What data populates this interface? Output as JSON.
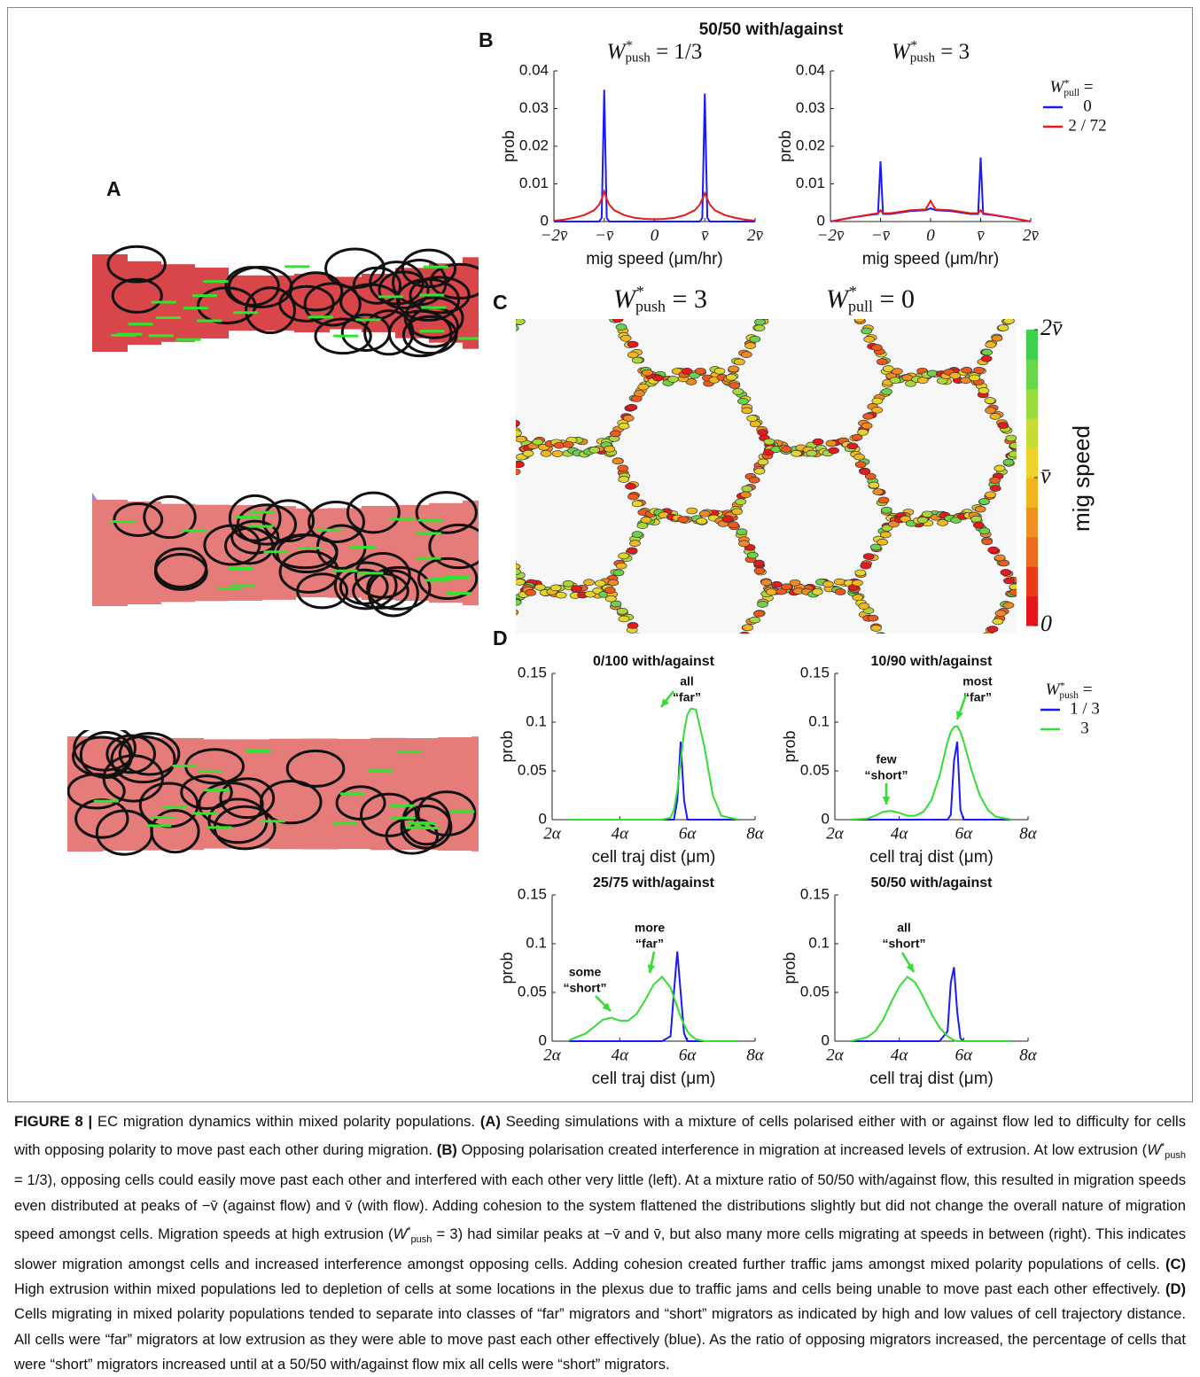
{
  "panel_labels": [
    "A",
    "B",
    "C",
    "D"
  ],
  "panel_b_title": "50/50 with/against",
  "panel_c": {
    "headers": [
      {
        "symbol": "W",
        "sup": "*",
        "sub": "push",
        "text": "= 3"
      },
      {
        "symbol": "W",
        "sup": "*",
        "sub": "pull",
        "text": "= 0"
      }
    ],
    "colorbar": {
      "lim": [
        0,
        2
      ],
      "ticks": [
        {
          "value": 2,
          "label": "2v̄"
        },
        {
          "value": 1,
          "label": "v̄"
        },
        0
      ],
      "label": "mig speed"
    }
  },
  "chart_data": [
    {
      "type": "line",
      "subtitle": {
        "symbol": "W",
        "sup": "*",
        "sub": "push",
        "text": "= 1/3"
      },
      "x": [
        -2,
        -1.8,
        -1.6,
        -1.4,
        -1.2,
        -1.1,
        -1.05,
        -1,
        -0.95,
        -0.9,
        -0.8,
        -0.6,
        -0.4,
        -0.2,
        0,
        0.2,
        0.4,
        0.6,
        0.8,
        0.9,
        0.95,
        1,
        1.05,
        1.1,
        1.2,
        1.4,
        1.6,
        1.8,
        2
      ],
      "series": [
        {
          "color": "#1a1aff",
          "values": [
            0,
            0,
            0,
            0,
            0,
            0,
            0.001,
            0.035,
            0.001,
            0,
            0,
            0,
            0,
            0,
            0,
            0,
            0,
            0,
            0,
            0,
            0.001,
            0.034,
            0.001,
            0,
            0,
            0,
            0,
            0,
            0
          ]
        },
        {
          "color": "#e8191c",
          "values": [
            0.0002,
            0.0005,
            0.001,
            0.0017,
            0.003,
            0.0045,
            0.006,
            0.008,
            0.006,
            0.0045,
            0.003,
            0.0017,
            0.001,
            0.0007,
            0.0006,
            0.0007,
            0.001,
            0.0017,
            0.003,
            0.0045,
            0.006,
            0.0075,
            0.006,
            0.0045,
            0.003,
            0.0017,
            0.001,
            0.0005,
            0.0002
          ]
        }
      ],
      "xlim": [
        -2,
        2
      ],
      "ylim": [
        0,
        0.04
      ],
      "xticks": [
        {
          "value": -2,
          "label": "−2v̄"
        },
        {
          "value": -1,
          "label": "−v̄"
        },
        0,
        {
          "value": 1,
          "label": "v̄"
        },
        {
          "value": 2,
          "label": "2v̄"
        }
      ],
      "yticks": [
        0,
        0.01,
        0.02,
        0.03,
        0.04
      ],
      "xlabel": "mig speed (μm/hr)",
      "ylabel": "prob"
    },
    {
      "type": "line",
      "subtitle": {
        "symbol": "W",
        "sup": "*",
        "sub": "push",
        "text": "= 3"
      },
      "legend_title": {
        "symbol": "W",
        "sup": "*",
        "sub": "pull",
        "text": "="
      },
      "x": [
        -2,
        -1.6,
        -1.2,
        -1.05,
        -1,
        -0.95,
        -0.8,
        -0.4,
        -0.1,
        0,
        0.1,
        0.4,
        0.8,
        0.95,
        1,
        1.05,
        1.2,
        1.6,
        2
      ],
      "series": [
        {
          "name": "0",
          "color": "#1a1aff",
          "values": [
            0,
            0.001,
            0.0018,
            0.002,
            0.016,
            0.002,
            0.002,
            0.0028,
            0.003,
            0.0035,
            0.003,
            0.0028,
            0.002,
            0.002,
            0.017,
            0.002,
            0.0018,
            0.001,
            0
          ]
        },
        {
          "name": "2 / 72",
          "color": "#e8191c",
          "values": [
            0,
            0.001,
            0.0019,
            0.0022,
            0.003,
            0.0022,
            0.0022,
            0.003,
            0.0032,
            0.0055,
            0.0032,
            0.003,
            0.0022,
            0.0022,
            0.003,
            0.0022,
            0.0019,
            0.001,
            0
          ]
        }
      ],
      "xlim": [
        -2,
        2
      ],
      "ylim": [
        0,
        0.04
      ],
      "xticks": [
        {
          "value": -2,
          "label": "−2v̄"
        },
        {
          "value": -1,
          "label": "−v̄"
        },
        0,
        {
          "value": 1,
          "label": "v̄"
        },
        {
          "value": 2,
          "label": "2v̄"
        }
      ],
      "yticks": [
        0,
        0.01,
        0.02,
        0.03,
        0.04
      ],
      "xlabel": "mig speed (μm/hr)",
      "ylabel": "prob"
    },
    {
      "type": "line",
      "title": "0/100 with/against",
      "x": [
        2.5,
        3,
        3.25,
        3.5,
        3.75,
        4,
        4.25,
        4.5,
        4.75,
        5,
        5.25,
        5.5,
        5.6,
        5.7,
        5.8,
        5.9,
        6,
        6.1,
        6.25,
        6.5,
        6.75,
        7,
        7.5
      ],
      "series": [
        {
          "color": "#1a1aff",
          "values": [
            0,
            0,
            0,
            0,
            0,
            0,
            0,
            0,
            0,
            0,
            0,
            0,
            0,
            0.02,
            0.08,
            0.02,
            0,
            0,
            0,
            0,
            0,
            0,
            0
          ]
        },
        {
          "color": "#33dd33",
          "values": [
            0,
            0,
            0,
            0,
            0,
            0,
            0,
            0,
            0,
            0,
            0,
            0.002,
            0.01,
            0.03,
            0.06,
            0.09,
            0.108,
            0.114,
            0.113,
            0.075,
            0.025,
            0.004,
            0
          ]
        }
      ],
      "xlim": [
        2,
        8
      ],
      "ylim": [
        0,
        0.15
      ],
      "xticks": [
        {
          "value": 2,
          "label": "2α"
        },
        {
          "value": 4,
          "label": "4α"
        },
        {
          "value": 6,
          "label": "6α"
        },
        {
          "value": 8,
          "label": "8α"
        }
      ],
      "yticks": [
        0,
        0.05,
        0.1,
        0.15
      ],
      "xlabel": "cell traj dist (μm)",
      "ylabel": "prob",
      "annotations": [
        {
          "lines": [
            "all",
            "“far”"
          ]
        }
      ]
    },
    {
      "type": "line",
      "title": "10/90 with/against",
      "legend_title": {
        "symbol": "W",
        "sup": "*",
        "sub": "push",
        "text": "="
      },
      "x": [
        2.5,
        3,
        3.25,
        3.5,
        3.75,
        4,
        4.25,
        4.5,
        4.75,
        5,
        5.25,
        5.5,
        5.6,
        5.7,
        5.8,
        5.9,
        6,
        6.1,
        6.25,
        6.5,
        6.75,
        7,
        7.5
      ],
      "series": [
        {
          "name": "1 / 3",
          "color": "#1a1aff",
          "values": [
            0,
            0,
            0,
            0,
            0,
            0,
            0,
            0,
            0,
            0,
            0,
            0,
            0.005,
            0.06,
            0.08,
            0.01,
            0,
            0,
            0,
            0,
            0,
            0,
            0
          ]
        },
        {
          "name": "3",
          "color": "#33dd33",
          "values": [
            0,
            0.001,
            0.004,
            0.008,
            0.009,
            0.007,
            0.004,
            0.004,
            0.008,
            0.02,
            0.045,
            0.08,
            0.09,
            0.095,
            0.096,
            0.09,
            0.08,
            0.068,
            0.05,
            0.025,
            0.01,
            0.003,
            0
          ]
        }
      ],
      "xlim": [
        2,
        8
      ],
      "ylim": [
        0,
        0.15
      ],
      "xticks": [
        {
          "value": 2,
          "label": "2α"
        },
        {
          "value": 4,
          "label": "4α"
        },
        {
          "value": 6,
          "label": "6α"
        },
        {
          "value": 8,
          "label": "8α"
        }
      ],
      "yticks": [
        0,
        0.05,
        0.1,
        0.15
      ],
      "xlabel": "cell traj dist (μm)",
      "ylabel": "prob",
      "annotations": [
        {
          "lines": [
            "most",
            "“far”"
          ]
        },
        {
          "lines": [
            "few",
            "“short”"
          ]
        }
      ]
    },
    {
      "type": "line",
      "title": "25/75 with/against",
      "x": [
        2.5,
        3,
        3.25,
        3.5,
        3.75,
        4,
        4.25,
        4.5,
        4.75,
        5,
        5.25,
        5.5,
        5.6,
        5.7,
        5.8,
        5.9,
        6,
        6.1,
        6.25,
        6.5,
        6.75,
        7,
        7.5
      ],
      "series": [
        {
          "color": "#1a1aff",
          "values": [
            0,
            0,
            0,
            0,
            0,
            0,
            0,
            0,
            0,
            0,
            0,
            0.005,
            0.05,
            0.092,
            0.05,
            0.008,
            0,
            0,
            0,
            0,
            0,
            0,
            0
          ]
        },
        {
          "color": "#33dd33",
          "values": [
            0.001,
            0.008,
            0.015,
            0.022,
            0.024,
            0.021,
            0.021,
            0.028,
            0.042,
            0.058,
            0.066,
            0.055,
            0.045,
            0.035,
            0.025,
            0.017,
            0.01,
            0.006,
            0.002,
            0,
            0,
            0,
            0
          ]
        }
      ],
      "xlim": [
        2,
        8
      ],
      "ylim": [
        0,
        0.15
      ],
      "xticks": [
        {
          "value": 2,
          "label": "2α"
        },
        {
          "value": 4,
          "label": "4α"
        },
        {
          "value": 6,
          "label": "6α"
        },
        {
          "value": 8,
          "label": "8α"
        }
      ],
      "yticks": [
        0,
        0.05,
        0.1,
        0.15
      ],
      "xlabel": "cell traj dist (μm)",
      "ylabel": "prob",
      "annotations": [
        {
          "lines": [
            "more",
            "“far”"
          ]
        },
        {
          "lines": [
            "some",
            "“short”"
          ]
        }
      ]
    },
    {
      "type": "line",
      "title": "50/50 with/against",
      "x": [
        2.5,
        3,
        3.25,
        3.5,
        3.75,
        4,
        4.25,
        4.5,
        4.75,
        5,
        5.25,
        5.5,
        5.6,
        5.7,
        5.8,
        5.9,
        6,
        6.1,
        6.25,
        6.5,
        6.75,
        7,
        7.5
      ],
      "series": [
        {
          "color": "#1a1aff",
          "values": [
            0,
            0,
            0,
            0,
            0,
            0,
            0,
            0,
            0,
            0,
            0,
            0.01,
            0.06,
            0.076,
            0.03,
            0.003,
            0,
            0,
            0,
            0,
            0,
            0,
            0
          ]
        },
        {
          "color": "#33dd33",
          "values": [
            0,
            0.004,
            0.01,
            0.022,
            0.04,
            0.056,
            0.066,
            0.06,
            0.045,
            0.028,
            0.014,
            0.005,
            0.003,
            0.001,
            0,
            0,
            0,
            0,
            0,
            0,
            0,
            0,
            0
          ]
        }
      ],
      "xlim": [
        2,
        8
      ],
      "ylim": [
        0,
        0.15
      ],
      "xticks": [
        {
          "value": 2,
          "label": "2α"
        },
        {
          "value": 4,
          "label": "4α"
        },
        {
          "value": 6,
          "label": "6α"
        },
        {
          "value": 8,
          "label": "8α"
        }
      ],
      "yticks": [
        0,
        0.05,
        0.1,
        0.15
      ],
      "xlabel": "cell traj dist (μm)",
      "ylabel": "prob",
      "annotations": [
        {
          "lines": [
            "all",
            "“short”"
          ]
        }
      ]
    }
  ],
  "caption": {
    "runs": [
      {
        "text": "FIGURE 8 |",
        "style": "bold"
      },
      {
        "text": " EC migration dynamics within mixed polarity populations. "
      },
      {
        "text": "(A)",
        "style": "bold"
      },
      {
        "text": " Seeding simulations with a mixture of cells polarised either with or against flow led to difficulty for cells with opposing polarity to move past each other during migration. "
      },
      {
        "text": "(B)",
        "style": "bold"
      },
      {
        "text": " Opposing polarisation created interference in migration at increased levels of extrusion. At low extrusion ("
      },
      {
        "text": "W",
        "style": "italic"
      },
      {
        "text": "*",
        "style": "sup"
      },
      {
        "text": "push",
        "style": "sub"
      },
      {
        "text": " = 1/3), opposing cells could easily move past each other and interfered with each other very little (left). At a mixture ratio of 50/50 with/against flow, this resulted in migration speeds even distributed at peaks of −v̄ (against flow) and v̄ (with flow). Adding cohesion to the system flattened the distributions slightly but did not change the overall nature of migration speed amongst cells. Migration speeds at high extrusion ("
      },
      {
        "text": "W",
        "style": "italic"
      },
      {
        "text": "*",
        "style": "sup"
      },
      {
        "text": "push",
        "style": "sub"
      },
      {
        "text": " = 3) had similar peaks at −v̄ and v̄, but also many more cells migrating at speeds in between (right). This indicates slower migration amongst cells and increased interference amongst opposing cells. Adding cohesion created further traffic jams amongst mixed polarity populations of cells. "
      },
      {
        "text": "(C)",
        "style": "bold"
      },
      {
        "text": " High extrusion within mixed populations led to depletion of cells at some locations in the plexus due to traffic jams and cells being unable to move past each other effectively. "
      },
      {
        "text": "(D)",
        "style": "bold"
      },
      {
        "text": " Cells migrating in mixed polarity populations tended to separate into classes of “far” migrators and “short” migrators as indicated by high and low values of cell trajectory distance. All cells were “far” migrators at low extrusion as they were able to move past each other effectively (blue). As the ratio of opposing migrators increased, the percentage of cells that were “short” migrators increased until at a 50/50 with/against flow mix all cells were “short” migrators."
      }
    ]
  }
}
